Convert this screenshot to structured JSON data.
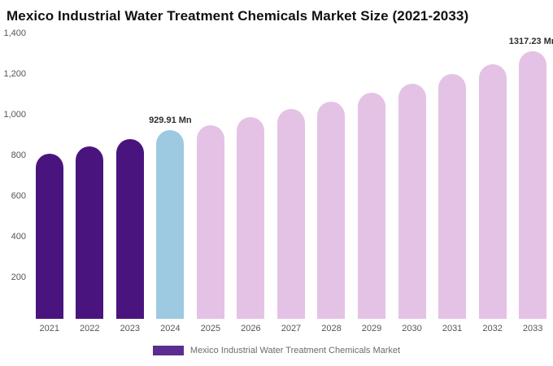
{
  "title": "Mexico Industrial Water Treatment Chemicals Market Size (2021-2033)",
  "legend": {
    "label": "Mexico Industrial Water Treatment Chemicals Market",
    "swatch_color": "#5b2d8e"
  },
  "chart_data": {
    "type": "bar",
    "title": "Mexico Industrial Water Treatment Chemicals Market Size (2021-2033)",
    "categories": [
      "2021",
      "2022",
      "2023",
      "2024",
      "2025",
      "2026",
      "2027",
      "2028",
      "2029",
      "2030",
      "2031",
      "2032",
      "2033"
    ],
    "values": [
      812,
      848,
      886,
      929.91,
      952,
      993,
      1031,
      1070,
      1113,
      1158,
      1204,
      1254,
      1317.23
    ],
    "unit": "Mn",
    "roles": [
      "historical",
      "historical",
      "historical",
      "current",
      "forecast",
      "forecast",
      "forecast",
      "forecast",
      "forecast",
      "forecast",
      "forecast",
      "forecast",
      "forecast"
    ],
    "colors": {
      "historical": "#4a147e",
      "current": "#9dcae0",
      "forecast": "#e4c2e5"
    },
    "annotations": {
      "2024": "929.91 Mn",
      "2033": "1317.23 Mn"
    },
    "xlabel": "",
    "ylabel": "",
    "ylim": [
      0,
      1400
    ],
    "yticks": [
      200,
      400,
      600,
      800,
      1000,
      1200,
      1400
    ],
    "grid": false,
    "legend_position": "bottom"
  }
}
